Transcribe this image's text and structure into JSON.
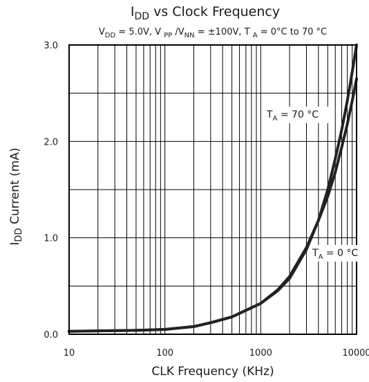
{
  "chart_data": {
    "type": "line",
    "title": {
      "main": "I",
      "main_sub": "DD",
      "main_rest": " vs Clock Frequency"
    },
    "subtitle": {
      "v": "V",
      "v_sub": "DD",
      "v_rest": " = 5.0V, V ",
      "pp_sub": "PP",
      "slash_v": " /V",
      "nn_sub": "NN",
      "mid": " =  ±100V, T ",
      "a_sub": "A",
      "end": " = 0°C to 70 °C"
    },
    "xlabel": "CLK Frequency  (KHz)",
    "ylabel": {
      "main": "I",
      "sub": "DD",
      "rest": " Current (mA)"
    },
    "x_scale": "log",
    "xlim": [
      10,
      10000
    ],
    "ylim": [
      0,
      3.0
    ],
    "x_ticks": [
      {
        "value": 10,
        "label": "10"
      },
      {
        "value": 100,
        "label": "100"
      },
      {
        "value": 1000,
        "label": "1000"
      },
      {
        "value": 10000,
        "label": "10000"
      }
    ],
    "y_ticks": [
      {
        "value": 0,
        "label": "0.0"
      },
      {
        "value": 1.0,
        "label": "1.0"
      },
      {
        "value": 2.0,
        "label": "2.0"
      },
      {
        "value": 3.0,
        "label": "3.0"
      }
    ],
    "y_minor_grid": [
      0.5,
      1.5,
      2.5
    ],
    "grid": true,
    "series": [
      {
        "name": "T_A = 70 °C",
        "x": [
          10,
          20,
          50,
          100,
          200,
          300,
          500,
          1000,
          1500,
          2000,
          3000,
          4000,
          5000,
          6000,
          7000,
          8000,
          9000,
          10000
        ],
        "y": [
          0.03,
          0.035,
          0.04,
          0.05,
          0.08,
          0.12,
          0.18,
          0.32,
          0.45,
          0.58,
          0.88,
          1.18,
          1.5,
          1.82,
          2.12,
          2.42,
          2.72,
          3.0
        ]
      },
      {
        "name": "T_A = 0 °C",
        "x": [
          10,
          20,
          50,
          100,
          200,
          300,
          500,
          1000,
          1500,
          2000,
          3000,
          4000,
          5000,
          6000,
          7000,
          8000,
          9000,
          10000
        ],
        "y": [
          0.03,
          0.035,
          0.04,
          0.05,
          0.08,
          0.12,
          0.18,
          0.32,
          0.46,
          0.6,
          0.9,
          1.18,
          1.43,
          1.68,
          1.94,
          2.18,
          2.42,
          2.65
        ]
      }
    ],
    "annotations": [
      {
        "label": "T",
        "sub": "A",
        "rest": " = 70 °C",
        "series": 0
      },
      {
        "label": "T",
        "sub": "A",
        "rest": " = 0 °C",
        "series": 1
      }
    ],
    "line_color": "#222222"
  }
}
